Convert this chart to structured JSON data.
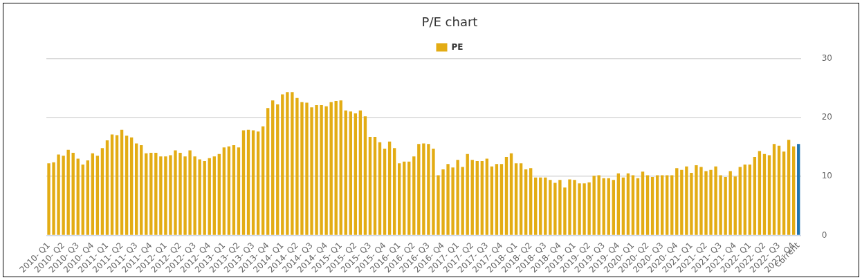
{
  "chart_data": {
    "type": "bar",
    "title": "P/E chart",
    "categories": [
      "2010- Q1",
      null,
      null,
      "2010- Q2",
      null,
      null,
      "2010- Q3",
      null,
      null,
      "2010- Q4",
      null,
      null,
      "2011- Q1",
      null,
      null,
      "2011- Q2",
      null,
      null,
      "2011- Q3",
      null,
      null,
      "2011- Q4",
      null,
      null,
      "2012- Q1",
      null,
      null,
      "2012- Q2",
      null,
      null,
      "2012- Q3",
      null,
      null,
      "2012- Q4",
      null,
      null,
      "2013- Q1",
      null,
      null,
      "2013- Q2",
      null,
      null,
      "2013- Q3",
      null,
      null,
      "2013- Q4",
      null,
      null,
      "2014- Q1",
      null,
      null,
      "2014- Q2",
      null,
      null,
      "2014- Q3",
      null,
      null,
      "2014- Q4",
      null,
      null,
      "2015- Q1",
      null,
      null,
      "2015- Q2",
      null,
      null,
      "2015- Q3",
      null,
      null,
      "2015- Q4",
      null,
      null,
      "2016- Q1",
      null,
      null,
      "2016- Q2",
      null,
      null,
      "2016- Q3",
      null,
      null,
      "2016- Q4",
      null,
      null,
      "2017- Q1",
      null,
      null,
      "2017- Q2",
      null,
      null,
      "2017- Q3",
      null,
      null,
      "2017- Q4",
      null,
      null,
      "2018- Q1",
      null,
      null,
      "2018- Q2",
      null,
      null,
      "2018- Q3",
      null,
      null,
      "2018- Q4",
      null,
      null,
      "2019- Q1",
      null,
      null,
      "2019- Q2",
      null,
      null,
      "2019- Q3",
      null,
      null,
      "2019- Q4",
      null,
      null,
      "2020- Q1",
      null,
      null,
      "2020- Q2",
      null,
      null,
      "2020- Q3",
      null,
      null,
      "2020- Q4",
      null,
      null,
      "2021- Q1",
      null,
      null,
      "2021- Q2",
      null,
      null,
      "2021- Q3",
      null,
      null,
      "2021- Q4",
      null,
      null,
      "2022- Q1",
      null,
      null,
      "2022- Q2",
      null,
      null,
      "2022- Q3",
      null,
      null,
      "2022- Q4",
      "Current"
    ],
    "series": [
      {
        "name": "PE",
        "color": "#e3ac14",
        "colors": [
          "#e3ac14",
          "#e3ac14",
          "#e3ac14",
          "#e3ac14",
          "#e3ac14",
          "#e3ac14",
          "#e3ac14",
          "#e3ac14",
          "#e3ac14",
          "#e3ac14",
          "#e3ac14",
          "#e3ac14",
          "#e3ac14",
          "#e3ac14",
          "#e3ac14",
          "#e3ac14",
          "#e3ac14",
          "#e3ac14",
          "#e3ac14",
          "#e3ac14",
          "#e3ac14",
          "#e3ac14",
          "#e3ac14",
          "#e3ac14",
          "#e3ac14",
          "#e3ac14",
          "#e3ac14",
          "#e3ac14",
          "#e3ac14",
          "#e3ac14",
          "#e3ac14",
          "#e3ac14",
          "#e3ac14",
          "#e3ac14",
          "#e3ac14",
          "#e3ac14",
          "#e3ac14",
          "#e3ac14",
          "#e3ac14",
          "#e3ac14",
          "#e3ac14",
          "#e3ac14",
          "#e3ac14",
          "#e3ac14",
          "#e3ac14",
          "#e3ac14",
          "#e3ac14",
          "#e3ac14",
          "#e3ac14",
          "#e3ac14",
          "#e3ac14",
          "#e3ac14",
          "#e3ac14",
          "#e3ac14",
          "#e3ac14",
          "#e3ac14",
          "#e3ac14",
          "#e3ac14",
          "#e3ac14",
          "#e3ac14",
          "#e3ac14",
          "#e3ac14",
          "#e3ac14",
          "#e3ac14",
          "#e3ac14",
          "#e3ac14",
          "#e3ac14",
          "#e3ac14",
          "#e3ac14",
          "#e3ac14",
          "#e3ac14",
          "#e3ac14",
          "#e3ac14",
          "#e3ac14",
          "#e3ac14",
          "#e3ac14",
          "#e3ac14",
          "#e3ac14",
          "#e3ac14",
          "#e3ac14",
          "#e3ac14",
          "#e3ac14",
          "#e3ac14",
          "#e3ac14",
          "#e3ac14",
          "#e3ac14",
          "#e3ac14",
          "#e3ac14",
          "#e3ac14",
          "#e3ac14",
          "#e3ac14",
          "#e3ac14",
          "#e3ac14",
          "#e3ac14",
          "#e3ac14",
          "#e3ac14",
          "#e3ac14",
          "#e3ac14",
          "#e3ac14",
          "#e3ac14",
          "#e3ac14",
          "#e3ac14",
          "#e3ac14",
          "#e3ac14",
          "#e3ac14",
          "#e3ac14",
          "#e3ac14",
          "#e3ac14",
          "#e3ac14",
          "#e3ac14",
          "#e3ac14",
          "#e3ac14",
          "#e3ac14",
          "#e3ac14",
          "#e3ac14",
          "#e3ac14",
          "#e3ac14",
          "#e3ac14",
          "#e3ac14",
          "#e3ac14",
          "#e3ac14",
          "#e3ac14",
          "#e3ac14",
          "#e3ac14",
          "#e3ac14",
          "#e3ac14",
          "#e3ac14",
          "#e3ac14",
          "#e3ac14",
          "#e3ac14",
          "#e3ac14",
          "#e3ac14",
          "#e3ac14",
          "#e3ac14",
          "#e3ac14",
          "#e3ac14",
          "#e3ac14",
          "#e3ac14",
          "#e3ac14",
          "#e3ac14",
          "#e3ac14",
          "#e3ac14",
          "#e3ac14",
          "#e3ac14",
          "#e3ac14",
          "#e3ac14",
          "#e3ac14",
          "#e3ac14",
          "#e3ac14",
          "#e3ac14",
          "#e3ac14",
          "#e3ac14",
          "#e3ac14",
          "#e3ac14",
          "#1f74b0"
        ],
        "values": [
          12.2,
          12.4,
          13.7,
          13.5,
          14.5,
          14.0,
          13.0,
          12.0,
          12.7,
          13.9,
          13.5,
          14.8,
          16.1,
          17.1,
          17.0,
          17.9,
          16.9,
          16.6,
          15.6,
          15.3,
          13.9,
          14.0,
          14.0,
          13.4,
          13.4,
          13.6,
          14.4,
          14.0,
          13.4,
          14.4,
          13.4,
          12.9,
          12.6,
          13.1,
          13.4,
          13.8,
          14.9,
          15.1,
          15.3,
          14.9,
          17.8,
          17.9,
          17.8,
          17.6,
          18.5,
          21.6,
          22.9,
          22.2,
          23.9,
          24.3,
          24.3,
          23.3,
          22.6,
          22.5,
          21.7,
          22.1,
          22.1,
          21.9,
          22.6,
          22.8,
          22.9,
          21.2,
          21.0,
          20.7,
          21.2,
          20.2,
          16.7,
          16.7,
          15.8,
          14.7,
          15.9,
          14.8,
          12.2,
          12.5,
          12.5,
          13.4,
          15.5,
          15.6,
          15.5,
          14.7,
          10.2,
          11.2,
          12.1,
          11.5,
          12.8,
          11.6,
          13.8,
          12.8,
          12.6,
          12.6,
          13.0,
          11.7,
          12.1,
          12.1,
          13.3,
          13.9,
          12.2,
          12.2,
          11.2,
          11.4,
          9.8,
          9.8,
          9.8,
          9.4,
          8.9,
          9.4,
          8.1,
          9.5,
          9.4,
          8.8,
          8.8,
          9.0,
          10.1,
          10.2,
          9.7,
          9.7,
          9.4,
          10.5,
          9.8,
          10.5,
          10.2,
          9.7,
          10.8,
          10.2,
          9.9,
          10.2,
          10.2,
          10.2,
          10.2,
          11.4,
          11.1,
          11.7,
          10.6,
          11.9,
          11.6,
          10.9,
          11.1,
          11.7,
          10.2,
          9.9,
          10.9,
          10.0,
          11.6,
          12.0,
          12.0,
          13.3,
          14.3,
          13.8,
          13.6,
          15.5,
          15.2,
          14.2,
          16.2,
          15.1,
          15.5
        ]
      }
    ],
    "ylim": [
      0,
      30
    ],
    "yticks": [
      0,
      10,
      20,
      30
    ],
    "grid": "y",
    "legend": "top"
  }
}
